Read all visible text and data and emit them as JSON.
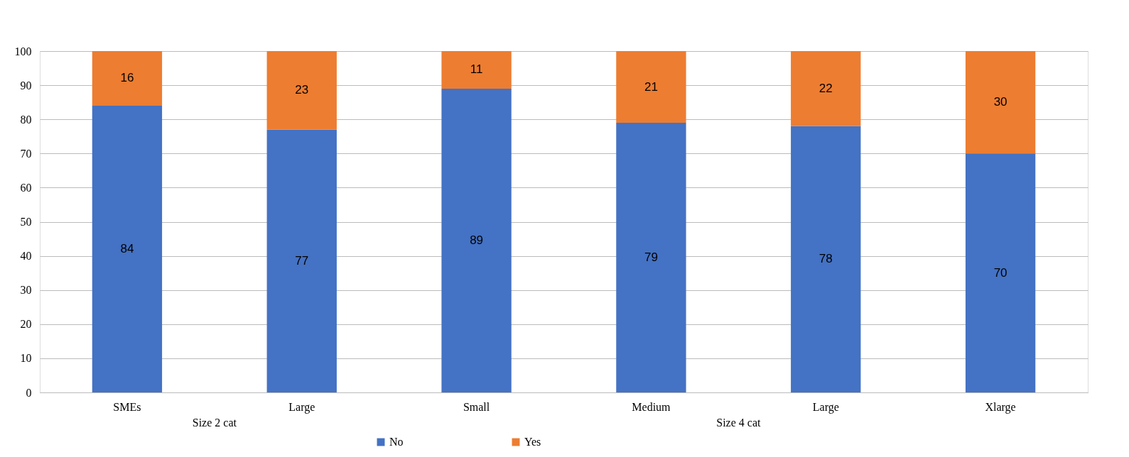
{
  "chart_data": {
    "type": "bar",
    "stacked": true,
    "categories": [
      "SMEs",
      "Large",
      "Small",
      "Medium",
      "Large",
      "Xlarge"
    ],
    "series": [
      {
        "name": "No",
        "color": "#4472c4",
        "values": [
          84,
          77,
          89,
          79,
          78,
          70
        ]
      },
      {
        "name": "Yes",
        "color": "#ed7d31",
        "values": [
          16,
          23,
          11,
          21,
          22,
          30
        ]
      }
    ],
    "ylim": [
      0,
      100
    ],
    "yticks": [
      0,
      10,
      20,
      30,
      40,
      50,
      60,
      70,
      80,
      90,
      100
    ],
    "grid": "y",
    "legend": "bottom",
    "data_labels": true,
    "annotations": [
      "Size 2 cat",
      "Size 4 cat"
    ]
  }
}
